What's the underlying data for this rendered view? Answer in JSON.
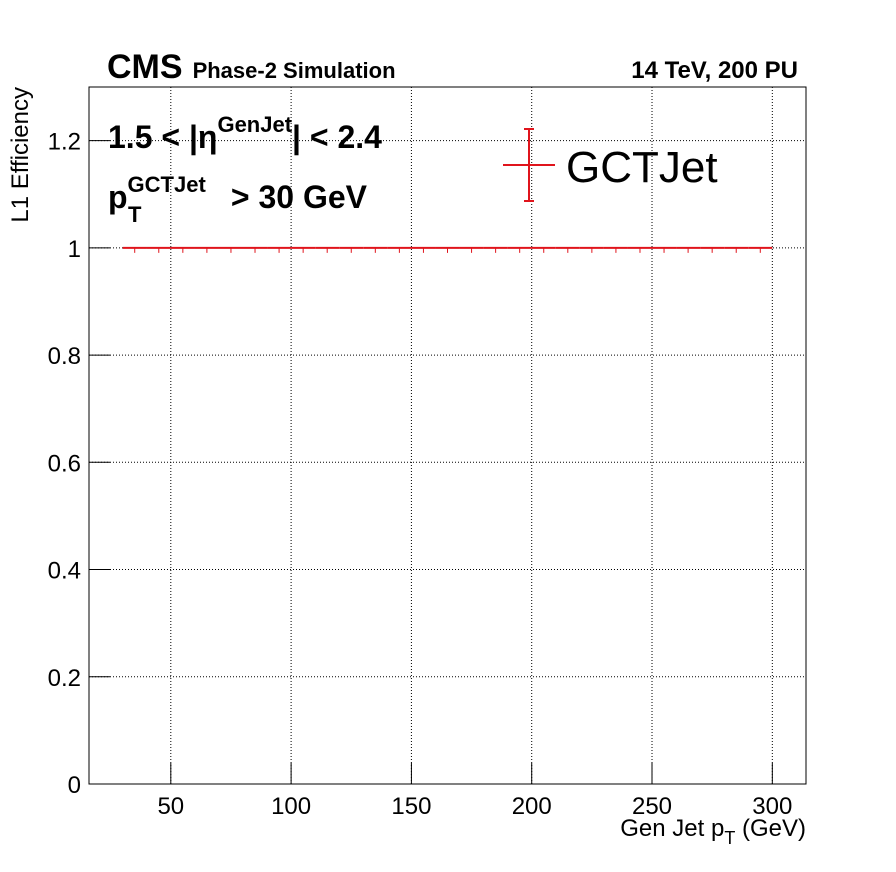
{
  "chart_data": {
    "type": "histogram",
    "title": "CMS",
    "subtitle": "Phase-2 Simulation",
    "energy_label": "14 TeV, 200 PU",
    "x_label": {
      "main": "Gen Jet p",
      "sub": "T",
      "unit": " (GeV)"
    },
    "y_label": "L1 Efficiency",
    "annotations": [
      {
        "text": "1.5 < |η",
        "sup": "GenJet",
        "after": "| < 2.4"
      },
      {
        "text": "p",
        "sup": "GCTJet",
        "sub": "T",
        "after": " > 30 GeV"
      }
    ],
    "bins": [
      30,
      40,
      50,
      60,
      70,
      80,
      90,
      100,
      110,
      120,
      130,
      140,
      150,
      160,
      170,
      180,
      190,
      200,
      210,
      220,
      230,
      240,
      250,
      260,
      270,
      280,
      290,
      300
    ],
    "series": [
      {
        "name": "GCTJet",
        "color": "#e0141c",
        "values": [
          1,
          1,
          1,
          1,
          1,
          1,
          1,
          1,
          1,
          1,
          1,
          1,
          1,
          1,
          1,
          1,
          1,
          1,
          1,
          1,
          1,
          1,
          1,
          1,
          1,
          1,
          1
        ]
      }
    ],
    "xlim": [
      16,
      314
    ],
    "ylim": [
      0,
      1.3
    ],
    "xticks": [
      50,
      100,
      150,
      200,
      250,
      300
    ],
    "yticks": [
      0,
      0.2,
      0.4,
      0.6,
      0.8,
      1,
      1.2
    ],
    "grid": true,
    "legend": "top-right"
  }
}
